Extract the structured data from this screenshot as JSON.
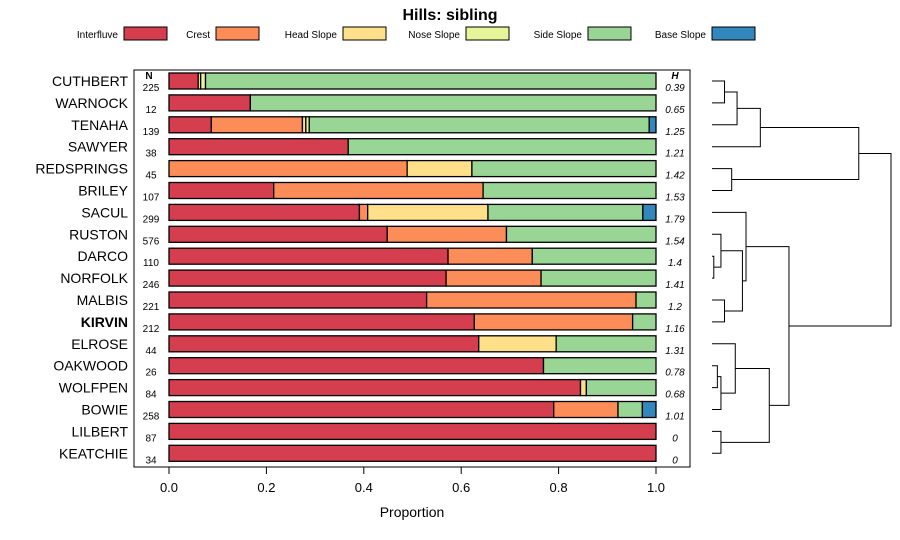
{
  "chart_data": {
    "type": "bar",
    "orientation": "horizontal",
    "stacked": true,
    "title": "Hills: sibling",
    "xlabel": "Proportion",
    "xlim": [
      -0.07,
      1.07
    ],
    "xticks": [
      0.0,
      0.2,
      0.4,
      0.6,
      0.8,
      1.0
    ],
    "xtick_labels": [
      "0.0",
      "0.2",
      "0.4",
      "0.6",
      "0.8",
      "1.0"
    ],
    "n_header": "N",
    "h_header": "H",
    "highlight": "KIRVIN",
    "legend": [
      {
        "name": "Interfluve",
        "color": "#d53e4f"
      },
      {
        "name": "Crest",
        "color": "#fc8d59"
      },
      {
        "name": "Head Slope",
        "color": "#fee08b"
      },
      {
        "name": "Nose Slope",
        "color": "#e6f598"
      },
      {
        "name": "Side Slope",
        "color": "#99d594"
      },
      {
        "name": "Base Slope",
        "color": "#3288bd"
      }
    ],
    "rows": [
      {
        "name": "CUTHBERT",
        "n": "225",
        "h": "0.39",
        "values": [
          0.06,
          0.0,
          0.005,
          0.01,
          0.925,
          0.0
        ]
      },
      {
        "name": "WARNOCK",
        "n": "12",
        "h": "0.65",
        "values": [
          0.167,
          0.0,
          0.0,
          0.0,
          0.833,
          0.0
        ]
      },
      {
        "name": "TENAHA",
        "n": "139",
        "h": "1.25",
        "values": [
          0.087,
          0.187,
          0.007,
          0.007,
          0.698,
          0.014
        ]
      },
      {
        "name": "SAWYER",
        "n": "38",
        "h": "1.21",
        "values": [
          0.368,
          0.0,
          0.0,
          0.0,
          0.632,
          0.0
        ]
      },
      {
        "name": "REDSPRINGS",
        "n": "45",
        "h": "1.42",
        "values": [
          0.0,
          0.489,
          0.133,
          0.0,
          0.378,
          0.0
        ]
      },
      {
        "name": "BRILEY",
        "n": "107",
        "h": "1.53",
        "values": [
          0.215,
          0.43,
          0.0,
          0.0,
          0.355,
          0.0
        ]
      },
      {
        "name": "SACUL",
        "n": "299",
        "h": "1.79",
        "values": [
          0.391,
          0.017,
          0.247,
          0.0,
          0.318,
          0.027
        ]
      },
      {
        "name": "RUSTON",
        "n": "576",
        "h": "1.54",
        "values": [
          0.448,
          0.245,
          0.0,
          0.0,
          0.307,
          0.0
        ]
      },
      {
        "name": "DARCO",
        "n": "110",
        "h": "1.4",
        "values": [
          0.573,
          0.173,
          0.0,
          0.0,
          0.254,
          0.0
        ]
      },
      {
        "name": "NORFOLK",
        "n": "246",
        "h": "1.41",
        "values": [
          0.569,
          0.195,
          0.0,
          0.0,
          0.236,
          0.0
        ]
      },
      {
        "name": "MALBIS",
        "n": "221",
        "h": "1.2",
        "values": [
          0.529,
          0.43,
          0.0,
          0.0,
          0.041,
          0.0
        ]
      },
      {
        "name": "KIRVIN",
        "n": "212",
        "h": "1.16",
        "values": [
          0.627,
          0.325,
          0.0,
          0.0,
          0.048,
          0.0
        ]
      },
      {
        "name": "ELROSE",
        "n": "44",
        "h": "1.31",
        "values": [
          0.636,
          0.0,
          0.159,
          0.0,
          0.205,
          0.0
        ]
      },
      {
        "name": "OAKWOOD",
        "n": "26",
        "h": "0.78",
        "values": [
          0.769,
          0.0,
          0.0,
          0.0,
          0.231,
          0.0
        ]
      },
      {
        "name": "WOLFPEN",
        "n": "84",
        "h": "0.68",
        "values": [
          0.845,
          0.0,
          0.012,
          0.0,
          0.143,
          0.0
        ]
      },
      {
        "name": "BOWIE",
        "n": "258",
        "h": "1.01",
        "values": [
          0.79,
          0.132,
          0.0,
          0.0,
          0.05,
          0.028
        ]
      },
      {
        "name": "LILBERT",
        "n": "87",
        "h": "0",
        "values": [
          1.0,
          0.0,
          0.0,
          0.0,
          0.0,
          0.0
        ]
      },
      {
        "name": "KEATCHIE",
        "n": "34",
        "h": "0",
        "values": [
          1.0,
          0.0,
          0.0,
          0.0,
          0.0,
          0.0
        ]
      }
    ],
    "dendrogram": {
      "type": "hierarchical clustering",
      "leaf_order": [
        "CUTHBERT",
        "WARNOCK",
        "TENAHA",
        "SAWYER",
        "REDSPRINGS",
        "BRILEY",
        "SACUL",
        "RUSTON",
        "DARCO",
        "NORFOLK",
        "MALBIS",
        "KIRVIN",
        "ELROSE",
        "OAKWOOD",
        "WOLFPEN",
        "BOWIE",
        "LILBERT",
        "KEATCHIE"
      ],
      "merges": [
        {
          "a": 0,
          "b": 1,
          "height": 0.07
        },
        {
          "a": -1,
          "b": 2,
          "height": 0.14
        },
        {
          "a": -2,
          "b": 3,
          "height": 0.27
        },
        {
          "a": 4,
          "b": 5,
          "height": 0.11
        },
        {
          "a": -3,
          "b": -4,
          "height": 0.82
        },
        {
          "a": 8,
          "b": 9,
          "height": 0.01
        },
        {
          "a": 7,
          "b": -6,
          "height": 0.05
        },
        {
          "a": 10,
          "b": 11,
          "height": 0.07
        },
        {
          "a": -7,
          "b": -8,
          "height": 0.17
        },
        {
          "a": 6,
          "b": -9,
          "height": 0.19
        },
        {
          "a": 13,
          "b": 14,
          "height": 0.03
        },
        {
          "a": -11,
          "b": 15,
          "height": 0.05
        },
        {
          "a": 12,
          "b": -12,
          "height": 0.13
        },
        {
          "a": 16,
          "b": 17,
          "height": 0.05
        },
        {
          "a": -13,
          "b": -14,
          "height": 0.32
        },
        {
          "a": -10,
          "b": -15,
          "height": 0.43
        },
        {
          "a": -5,
          "b": -16,
          "height": 1.0
        }
      ]
    }
  }
}
